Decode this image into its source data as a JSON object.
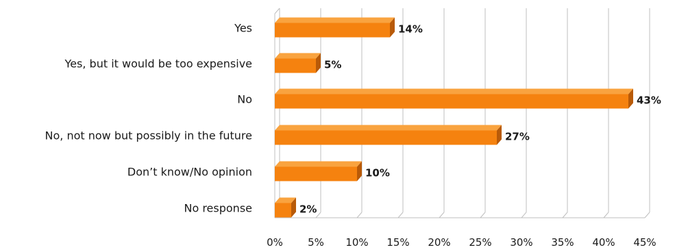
{
  "chart_data": {
    "type": "bar",
    "orientation": "horizontal",
    "categories": [
      "Yes",
      "Yes, but it would be too expensive",
      "No",
      "No, not now but possibly in the future",
      "Don’t know/No opinion",
      "No response"
    ],
    "values": [
      14,
      5,
      43,
      27,
      10,
      2
    ],
    "data_labels": [
      "14%",
      "5%",
      "43%",
      "27%",
      "10%",
      "2%"
    ],
    "x_ticks": [
      "0%",
      "5%",
      "10%",
      "15%",
      "20%",
      "25%",
      "30%",
      "35%",
      "40%",
      "45%"
    ],
    "xlim": [
      0,
      45
    ],
    "grid": true,
    "legend": "none",
    "colors": {
      "bar_front": "#F5820F",
      "bar_top": "#F9A33F",
      "bar_side": "#B85A08",
      "grid": "#bfbfbf"
    }
  }
}
